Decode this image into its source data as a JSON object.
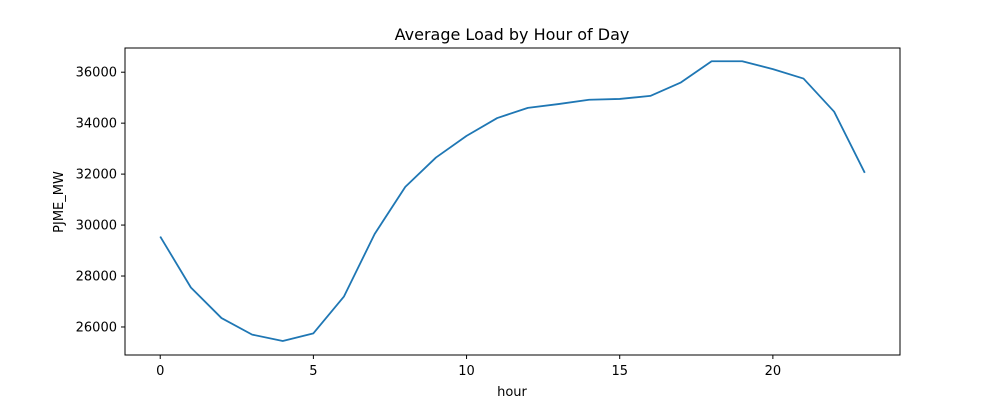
{
  "chart_data": {
    "type": "line",
    "title": "Average Load by Hour of Day",
    "xlabel": "hour",
    "ylabel": "PJME_MW",
    "xlim": [
      -1.15,
      24.15
    ],
    "ylim": [
      24900,
      36950
    ],
    "x_ticks": [
      0,
      5,
      10,
      15,
      20
    ],
    "y_ticks": [
      26000,
      28000,
      30000,
      32000,
      34000,
      36000
    ],
    "grid": false,
    "series": [
      {
        "color": "#1f77b4",
        "x": [
          0,
          1,
          2,
          3,
          4,
          5,
          6,
          7,
          8,
          9,
          10,
          11,
          12,
          13,
          14,
          15,
          16,
          17,
          18,
          19,
          20,
          21,
          22,
          23
        ],
        "values": [
          29550,
          27550,
          26350,
          25700,
          25450,
          25750,
          27200,
          29650,
          31500,
          32650,
          33500,
          34200,
          34600,
          34750,
          34920,
          34950,
          35070,
          35600,
          36430,
          36430,
          36120,
          35750,
          34450,
          32050
        ]
      }
    ]
  }
}
